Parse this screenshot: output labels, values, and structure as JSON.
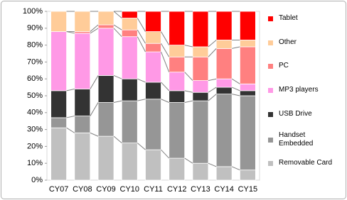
{
  "chart_data": {
    "type": "stacked_bar",
    "categories": [
      "CY07",
      "CY08",
      "CY09",
      "CY10",
      "CY11",
      "CY12",
      "CY13",
      "CY14",
      "CY15"
    ],
    "series": [
      {
        "name": "Removable Card",
        "color": "#c0c0c0",
        "values": [
          31,
          28,
          26,
          22,
          18,
          13,
          10,
          8,
          6
        ]
      },
      {
        "name": "Handset Embedded",
        "color": "#969696",
        "values": [
          6,
          10,
          20,
          25,
          30,
          33,
          37,
          43,
          44
        ]
      },
      {
        "name": "USB Drive",
        "color": "#333333",
        "values": [
          16,
          16,
          16,
          13,
          10,
          7,
          5,
          4,
          3
        ]
      },
      {
        "name": "MP3 players",
        "color": "#ff99e6",
        "values": [
          35,
          33,
          28,
          25,
          18,
          11,
          7,
          5,
          4
        ]
      },
      {
        "name": "PC",
        "color": "#ff8080",
        "values": [
          0,
          1,
          2,
          4,
          5,
          9,
          14,
          18,
          22
        ]
      },
      {
        "name": "Other",
        "color": "#ffcc99",
        "values": [
          12,
          12,
          8,
          7,
          7,
          7,
          6,
          5,
          4
        ]
      },
      {
        "name": "Tablet",
        "color": "#ff0000",
        "values": [
          0,
          0,
          0,
          4,
          12,
          20,
          21,
          17,
          17
        ]
      }
    ],
    "ylim": [
      0,
      100
    ],
    "yticks": [
      {
        "value": 0,
        "label": "0%"
      },
      {
        "value": 10,
        "label": "10%"
      },
      {
        "value": 20,
        "label": "20%"
      },
      {
        "value": 30,
        "label": "30%"
      },
      {
        "value": 40,
        "label": "40%"
      },
      {
        "value": 50,
        "label": "50%"
      },
      {
        "value": 60,
        "label": "60%"
      },
      {
        "value": 70,
        "label": "70%"
      },
      {
        "value": 80,
        "label": "80%"
      },
      {
        "value": 90,
        "label": "90%"
      },
      {
        "value": 100,
        "label": "100%"
      }
    ]
  }
}
